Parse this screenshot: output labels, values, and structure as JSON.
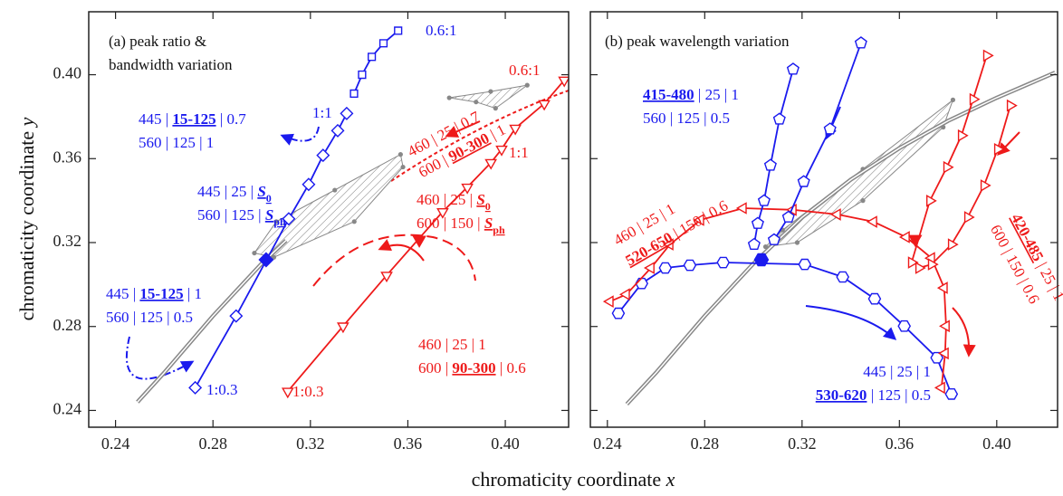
{
  "chart_data": [
    {
      "type": "line",
      "x_label": "chromaticity coordinate x",
      "y_label": "chromaticity coordinate y",
      "xlim": [
        0.229,
        0.426
      ],
      "ylim": [
        0.232,
        0.43
      ],
      "xticks": [
        0.24,
        0.28,
        0.32,
        0.36,
        {
          "value": 0.4,
          "label": "0.40"
        }
      ],
      "yticks": [
        0.24,
        0.28,
        0.32,
        0.36,
        {
          "value": 0.4,
          "label": "0.40"
        }
      ],
      "ytick_labels": true,
      "locus": {
        "color": "#888888",
        "x": [
          0.249,
          0.26,
          0.28,
          0.3,
          0.31
        ],
        "y": [
          0.244,
          0.258,
          0.285,
          0.31,
          0.321
        ]
      },
      "regions": [
        {
          "x": [
            0.297,
            0.306,
            0.33,
            0.357,
            0.358,
            0.338,
            0.305
          ],
          "y": [
            0.315,
            0.33,
            0.345,
            0.362,
            0.356,
            0.33,
            0.313
          ]
        },
        {
          "x": [
            0.377,
            0.394,
            0.409,
            0.396,
            0.388
          ],
          "y": [
            0.389,
            0.392,
            0.395,
            0.384,
            0.387
          ]
        }
      ],
      "series": [
        {
          "color": "#1a1aee",
          "marker": "diamond",
          "x": [
            0.2727,
            0.2895,
            0.3111,
            0.3193,
            0.3252,
            0.3312,
            0.3349
          ],
          "y": [
            0.2508,
            0.285,
            0.3313,
            0.3477,
            0.3616,
            0.3733,
            0.3815
          ]
        },
        {
          "color": "#1a1aee",
          "marker": "square",
          "x": [
            0.3379,
            0.3412,
            0.3452,
            0.35,
            0.356
          ],
          "y": [
            0.391,
            0.4,
            0.4085,
            0.415,
            0.421
          ]
        },
        {
          "color": "#ee1a1a",
          "marker": "triangle-down",
          "x": [
            0.3107,
            0.3334,
            0.3513,
            0.3743,
            0.3844,
            0.3941,
            0.3985,
            0.4041,
            0.416,
            0.4242
          ],
          "y": [
            0.2491,
            0.2802,
            0.3044,
            0.3347,
            0.3464,
            0.3581,
            0.3645,
            0.3745,
            0.3862,
            0.3974
          ]
        },
        {
          "color": "#1a1aee",
          "marker": "diamond",
          "filled": true,
          "x": [
            0.3018
          ],
          "y": [
            0.3118
          ]
        },
        {
          "color": "#ee1a1a",
          "marker": "triangle-down",
          "filled": true,
          "x": [
            0.3647
          ],
          "y": [
            0.3213
          ]
        }
      ],
      "annotations": [
        {
          "color": "#111111",
          "lines": [
            [
              {
                "text": "(a) peak ratio &"
              }
            ],
            [
              {
                "text": "bandwidth variation"
              }
            ]
          ]
        },
        {
          "color": "#1a1aee",
          "lines": [
            [
              {
                "text": "445 | "
              },
              {
                "text": "15-125",
                "emphasis": true
              },
              {
                "text": " | 0.7"
              }
            ],
            [
              {
                "text": "560 | 125 | 1"
              }
            ]
          ]
        },
        {
          "color": "#1a1aee",
          "lines": [
            [
              {
                "text": "445 | 25 | "
              },
              {
                "text": "S",
                "emphasis": true,
                "italic": true,
                "subscript": "0"
              }
            ],
            [
              {
                "text": "560 | 125 | "
              },
              {
                "text": "S",
                "emphasis": true,
                "italic": true,
                "subscript": "ph"
              }
            ]
          ]
        },
        {
          "color": "#1a1aee",
          "lines": [
            [
              {
                "text": "445 | "
              },
              {
                "text": "15-125",
                "emphasis": true
              },
              {
                "text": " | 1"
              }
            ],
            [
              {
                "text": "560 | 125 | 0.5"
              }
            ]
          ]
        },
        {
          "color": "#1a1aee",
          "lines": [
            [
              {
                "text": "1:1"
              }
            ]
          ]
        },
        {
          "color": "#1a1aee",
          "lines": [
            [
              {
                "text": "0.6:1"
              }
            ]
          ]
        },
        {
          "color": "#1a1aee",
          "lines": [
            [
              {
                "text": "1:0.3"
              }
            ]
          ]
        },
        {
          "color": "#ee1a1a",
          "lines": [
            [
              {
                "text": "460 | 25 | 0.7"
              }
            ],
            [
              {
                "text": "600 | "
              },
              {
                "text": "90-300",
                "emphasis": true
              },
              {
                "text": " | 1"
              }
            ]
          ]
        },
        {
          "color": "#ee1a1a",
          "lines": [
            [
              {
                "text": "460 | 25 | "
              },
              {
                "text": "S",
                "emphasis": true,
                "italic": true,
                "subscript": "0"
              }
            ],
            [
              {
                "text": "600 | 150 | "
              },
              {
                "text": "S",
                "emphasis": true,
                "italic": true,
                "subscript": "ph"
              }
            ]
          ]
        },
        {
          "color": "#ee1a1a",
          "lines": [
            [
              {
                "text": "460 | 25 | 1"
              }
            ],
            [
              {
                "text": "600 | "
              },
              {
                "text": "90-300",
                "emphasis": true
              },
              {
                "text": " | 0.6"
              }
            ]
          ]
        },
        {
          "color": "#ee1a1a",
          "lines": [
            [
              {
                "text": "0.6:1"
              }
            ]
          ]
        },
        {
          "color": "#ee1a1a",
          "lines": [
            [
              {
                "text": "1:1"
              }
            ]
          ]
        },
        {
          "color": "#ee1a1a",
          "lines": [
            [
              {
                "text": "1:0.3"
              }
            ]
          ]
        }
      ]
    },
    {
      "type": "line",
      "xlim": [
        0.233,
        0.425
      ],
      "ylim": [
        0.232,
        0.43
      ],
      "xticks": [
        0.24,
        0.28,
        0.32,
        0.36,
        {
          "value": 0.4,
          "label": "0.40"
        }
      ],
      "yticks": [
        0.24,
        0.28,
        0.32,
        0.36,
        0.4
      ],
      "ytick_labels": false,
      "locus": {
        "color": "#888888",
        "x": [
          0.248,
          0.26,
          0.28,
          0.3,
          0.32,
          0.34,
          0.36,
          0.38,
          0.4,
          0.424
        ],
        "y": [
          0.243,
          0.258,
          0.285,
          0.31,
          0.332,
          0.35,
          0.365,
          0.378,
          0.389,
          0.401
        ]
      },
      "regions": [
        {
          "x": [
            0.305,
            0.312,
            0.345,
            0.382,
            0.378,
            0.345,
            0.318
          ],
          "y": [
            0.318,
            0.326,
            0.355,
            0.388,
            0.375,
            0.34,
            0.32
          ]
        }
      ],
      "series": [
        {
          "color": "#1a1aee",
          "marker": "hexagon",
          "x": [
            0.2445,
            0.2541,
            0.2638,
            0.2739,
            0.2876,
            0.3211,
            0.3367,
            0.3498,
            0.362,
            0.3754,
            0.3814
          ],
          "y": [
            0.2863,
            0.3005,
            0.3079,
            0.3092,
            0.3105,
            0.3096,
            0.3036,
            0.2932,
            0.2802,
            0.2651,
            0.2478
          ]
        },
        {
          "color": "#ee1a1a",
          "marker": "triangle-left",
          "x": [
            0.2411,
            0.2478,
            0.2579,
            0.2657,
            0.2783,
            0.2958,
            0.3163,
            0.3345,
            0.3494,
            0.3628,
            0.3732,
            0.3784,
            0.3792,
            0.3788,
            0.3773
          ],
          "y": [
            0.2919,
            0.2953,
            0.3079,
            0.3191,
            0.3308,
            0.3364,
            0.3356,
            0.3334,
            0.3299,
            0.3226,
            0.3126,
            0.2984,
            0.2802,
            0.2672,
            0.2508
          ]
        },
        {
          "color": "#1a1aee",
          "marker": "pentagon",
          "x": [
            0.3003,
            0.3018,
            0.3044,
            0.307,
            0.3107,
            0.3163
          ],
          "y": [
            0.3191,
            0.3291,
            0.3399,
            0.3568,
            0.3788,
            0.4026
          ]
        },
        {
          "color": "#1a1aee",
          "marker": "pentagon",
          "x": [
            0.3085,
            0.3144,
            0.3207,
            0.3315,
            0.3442
          ],
          "y": [
            0.3213,
            0.3321,
            0.349,
            0.3741,
            0.4151
          ]
        },
        {
          "color": "#ee1a1a",
          "marker": "triangle-right",
          "x": [
            0.3959,
            0.3903,
            0.3855,
            0.3795,
            0.3725,
            0.365
          ],
          "y": [
            0.4091,
            0.3883,
            0.371,
            0.3559,
            0.3399,
            0.3105
          ]
        },
        {
          "color": "#ee1a1a",
          "marker": "triangle-right",
          "x": [
            0.4056,
            0.4004,
            0.3948,
            0.3881,
            0.3814,
            0.3732,
            0.368
          ],
          "y": [
            0.3853,
            0.3645,
            0.3472,
            0.3321,
            0.3191,
            0.3096,
            0.3079
          ]
        },
        {
          "color": "#1a1aee",
          "marker": "hexagon",
          "filled": true,
          "x": [
            0.3033
          ],
          "y": [
            0.3118
          ]
        },
        {
          "color": "#ee1a1a",
          "marker": "triangle-down",
          "filled": true,
          "x": [
            0.3665
          ],
          "y": [
            0.3217
          ]
        }
      ],
      "annotations": [
        {
          "color": "#111111",
          "lines": [
            [
              {
                "text": "(b) peak wavelength variation"
              }
            ]
          ]
        },
        {
          "color": "#1a1aee",
          "lines": [
            [
              {
                "text": "415-480",
                "emphasis": true
              },
              {
                "text": " | 25 | 1"
              }
            ],
            [
              {
                "text": "560 | 125 | 0.5"
              }
            ]
          ]
        },
        {
          "color": "#ee1a1a",
          "lines": [
            [
              {
                "text": "460 | 25 | 1"
              }
            ],
            [
              {
                "text": "520-650",
                "emphasis": true
              },
              {
                "text": " | 150 | 0.6"
              }
            ]
          ]
        },
        {
          "color": "#ee1a1a",
          "lines": [
            [
              {
                "text": "420-485",
                "emphasis": true
              },
              {
                "text": " | 25 | 1"
              }
            ],
            [
              {
                "text": "600 | 150 | 0.6"
              }
            ]
          ]
        },
        {
          "color": "#1a1aee",
          "lines": [
            [
              {
                "text": "445 | 25 | 1"
              }
            ],
            [
              {
                "text": "530-620",
                "emphasis": true
              },
              {
                "text": " | 125 | 0.5"
              }
            ]
          ]
        }
      ]
    }
  ]
}
